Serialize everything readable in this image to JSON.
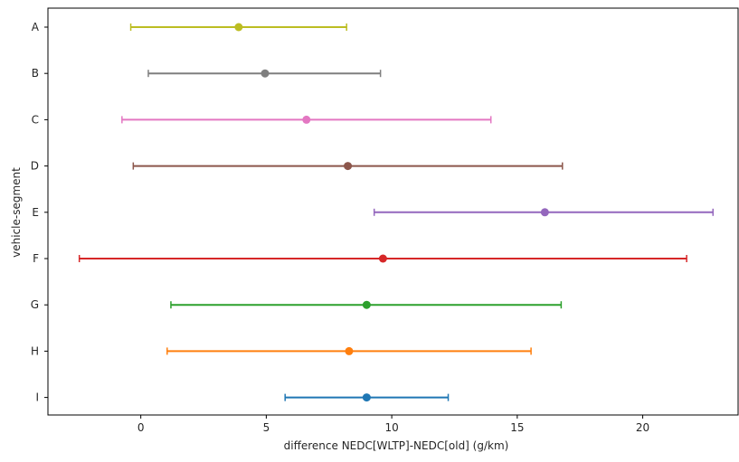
{
  "chart_data": {
    "type": "errorbar",
    "title": "",
    "xlabel": "difference NEDC[WLTP]-NEDC[old] (g/km)",
    "ylabel": "vehicle-segment",
    "xlim": [
      -3.7,
      23.8
    ],
    "xticks": [
      0,
      5,
      10,
      15,
      20
    ],
    "grid": false,
    "legend": "none",
    "categories": [
      "A",
      "B",
      "C",
      "D",
      "E",
      "F",
      "G",
      "H",
      "I"
    ],
    "series": [
      {
        "category": "A",
        "center": 3.9,
        "low": -0.4,
        "high": 8.2,
        "color": "#bcbd22"
      },
      {
        "category": "B",
        "center": 4.95,
        "low": 0.3,
        "high": 9.55,
        "color": "#7f7f7f"
      },
      {
        "category": "C",
        "center": 6.6,
        "low": -0.75,
        "high": 13.95,
        "color": "#e377c2"
      },
      {
        "category": "D",
        "center": 8.25,
        "low": -0.3,
        "high": 16.8,
        "color": "#8c564b"
      },
      {
        "category": "E",
        "center": 16.1,
        "low": 9.3,
        "high": 22.8,
        "color": "#9467bd"
      },
      {
        "category": "F",
        "center": 9.65,
        "low": -2.45,
        "high": 21.75,
        "color": "#d62728"
      },
      {
        "category": "G",
        "center": 9.0,
        "low": 1.2,
        "high": 16.75,
        "color": "#2ca02c"
      },
      {
        "category": "H",
        "center": 8.3,
        "low": 1.05,
        "high": 15.55,
        "color": "#ff7f0e"
      },
      {
        "category": "I",
        "center": 9.0,
        "low": 5.75,
        "high": 12.25,
        "color": "#1f77b4"
      }
    ]
  }
}
